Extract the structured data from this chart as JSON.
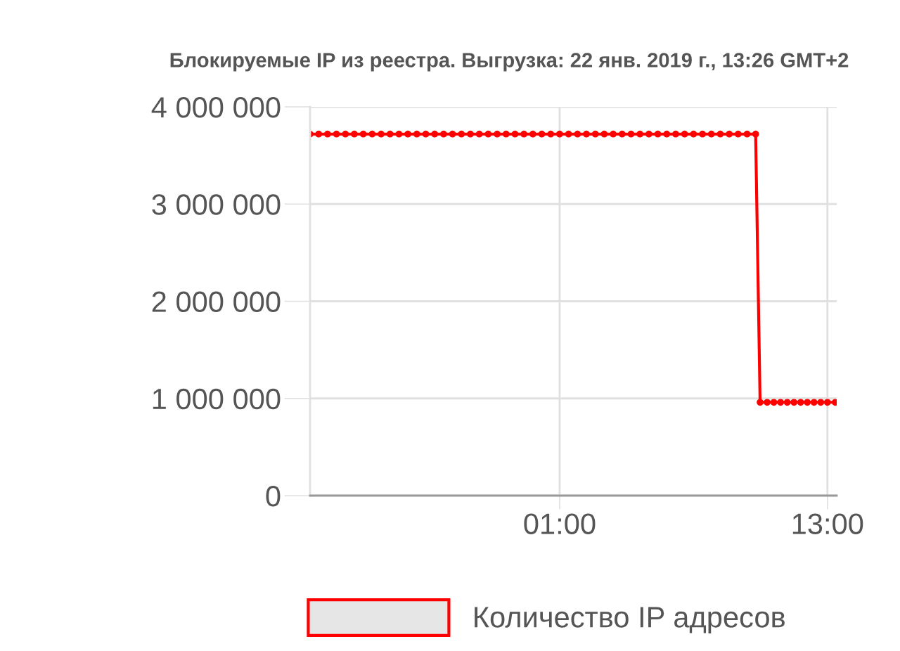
{
  "chart_data": {
    "type": "line",
    "title": "Блокируемые IP из реестра. Выгрузка: 22 янв. 2019 г., 13:26 GMT+2",
    "x": [
      "2019-01-21T13:49",
      "2019-01-21T14:12",
      "2019-01-21T14:36",
      "2019-01-21T15:00",
      "2019-01-21T15:24",
      "2019-01-21T15:48",
      "2019-01-21T16:12",
      "2019-01-21T16:36",
      "2019-01-21T17:00",
      "2019-01-21T17:24",
      "2019-01-21T17:48",
      "2019-01-21T18:12",
      "2019-01-21T18:36",
      "2019-01-21T19:00",
      "2019-01-21T19:24",
      "2019-01-21T19:48",
      "2019-01-21T20:12",
      "2019-01-21T20:36",
      "2019-01-21T21:00",
      "2019-01-21T21:24",
      "2019-01-21T21:48",
      "2019-01-21T22:12",
      "2019-01-21T22:36",
      "2019-01-21T23:00",
      "2019-01-21T23:24",
      "2019-01-21T23:48",
      "2019-01-22T00:12",
      "2019-01-22T00:36",
      "2019-01-22T01:00",
      "2019-01-22T01:24",
      "2019-01-22T01:48",
      "2019-01-22T02:12",
      "2019-01-22T02:36",
      "2019-01-22T03:00",
      "2019-01-22T03:24",
      "2019-01-22T03:48",
      "2019-01-22T04:12",
      "2019-01-22T04:36",
      "2019-01-22T05:00",
      "2019-01-22T05:24",
      "2019-01-22T05:48",
      "2019-01-22T06:12",
      "2019-01-22T06:36",
      "2019-01-22T07:00",
      "2019-01-22T07:24",
      "2019-01-22T07:48",
      "2019-01-22T08:12",
      "2019-01-22T08:36",
      "2019-01-22T09:00",
      "2019-01-22T09:24",
      "2019-01-22T09:47",
      "2019-01-22T09:59",
      "2019-01-22T10:18",
      "2019-01-22T10:36",
      "2019-01-22T10:54",
      "2019-01-22T11:12",
      "2019-01-22T11:30",
      "2019-01-22T11:48",
      "2019-01-22T12:06",
      "2019-01-22T12:24",
      "2019-01-22T12:42",
      "2019-01-22T13:00",
      "2019-01-22T13:21"
    ],
    "series": [
      {
        "name": "Количество IP адресов",
        "color": "#ff0000",
        "values": [
          3720000,
          3720000,
          3720000,
          3720000,
          3720000,
          3720000,
          3720000,
          3720000,
          3720000,
          3720000,
          3720000,
          3720000,
          3720000,
          3720000,
          3720000,
          3720000,
          3720000,
          3720000,
          3720000,
          3720000,
          3720000,
          3720000,
          3720000,
          3720000,
          3720000,
          3720000,
          3720000,
          3720000,
          3720000,
          3720000,
          3720000,
          3720000,
          3720000,
          3720000,
          3720000,
          3720000,
          3720000,
          3720000,
          3720000,
          3720000,
          3720000,
          3720000,
          3720000,
          3720000,
          3720000,
          3720000,
          3720000,
          3720000,
          3720000,
          3720000,
          3720000,
          960000,
          960000,
          960000,
          960000,
          960000,
          960000,
          960000,
          960000,
          960000,
          960000,
          960000,
          960000
        ]
      }
    ],
    "xlim": [
      "2019-01-21T13:49",
      "2019-01-22T13:25"
    ],
    "xticks": [
      {
        "value": "2019-01-22T01:00",
        "label": "01:00"
      },
      {
        "value": "2019-01-22T13:00",
        "label": "13:00"
      }
    ],
    "ylim": [
      0,
      4000000
    ],
    "yticks": [
      {
        "value": 0,
        "label": "0"
      },
      {
        "value": 1000000,
        "label": "1 000 000"
      },
      {
        "value": 2000000,
        "label": "2 000 000"
      },
      {
        "value": 3000000,
        "label": "3 000 000"
      },
      {
        "value": 4000000,
        "label": "4 000 000"
      }
    ],
    "grid": true,
    "legend": "bottom",
    "marker": "circle",
    "line_style": "solid"
  }
}
